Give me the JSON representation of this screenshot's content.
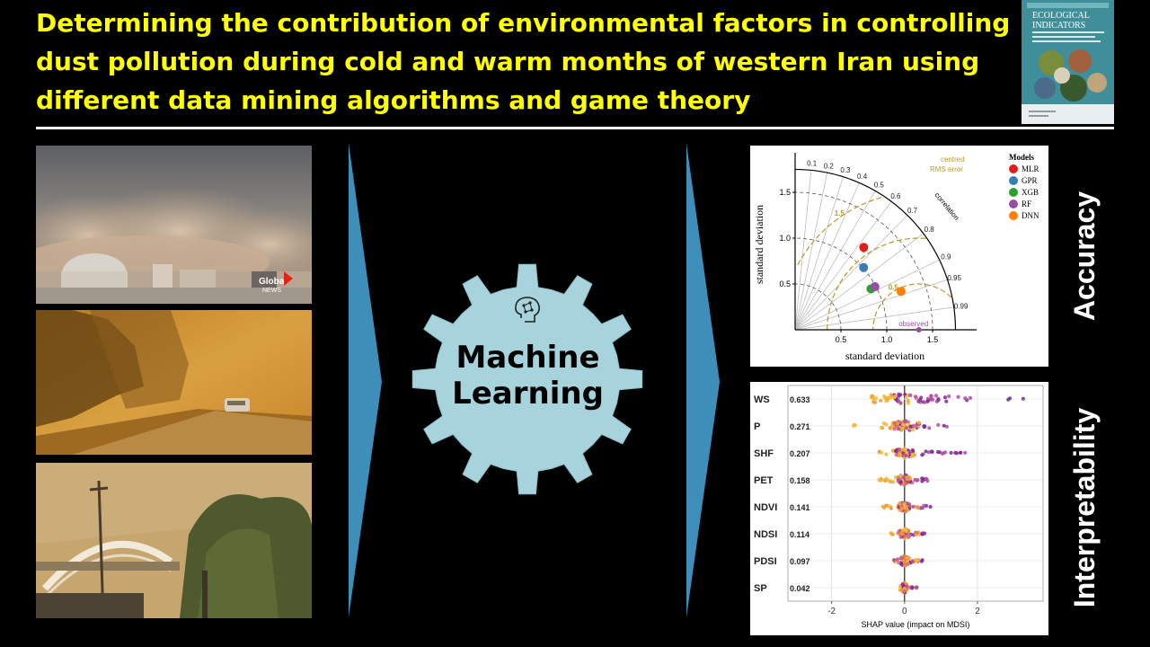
{
  "title": "Determining the contribution of environmental factors in controlling dust pollution during cold and warm months of western Iran using different data mining algorithms and game theory",
  "journal_cover": {
    "journal_name_line1": "ECOLOGICAL",
    "journal_name_line2": "INDICATORS"
  },
  "photos": {
    "dust_storm_watermark_line1": "Global",
    "dust_storm_watermark_line2": "NEWS"
  },
  "center": {
    "label_line1": "Machine",
    "label_line2": "Learning"
  },
  "side_labels": {
    "accuracy": "Accuracy",
    "interpretability": "Interpretability"
  },
  "taylor": {
    "xlabel": "standard deviation",
    "ylabel": "standard deviation",
    "correlation_label": "correlation",
    "rms_label_line1": "centred",
    "rms_label_line2": "RMS error",
    "observed_label": "observed",
    "legend_title": "Models",
    "y_ticks": [
      "0.5",
      "1.0",
      "1.5"
    ],
    "x_ticks": [
      "0.5",
      "1.0",
      "1.5"
    ],
    "corr_ticks": [
      "0.1",
      "0.2",
      "0.3",
      "0.4",
      "0.5",
      "0.6",
      "0.7",
      "0.8",
      "0.9",
      "0.95",
      "0.99"
    ],
    "rms_ticks": [
      "0.5",
      "1",
      "1.5"
    ],
    "colors": {
      "axes": "#000000",
      "rms": "#b89a2c",
      "spokes": "#bdbdbd"
    }
  },
  "chart_data": {
    "type": "scatter",
    "title": "",
    "xlabel": "standard deviation",
    "ylabel": "standard deviation",
    "xlim": [
      0,
      1.5
    ],
    "ylim": [
      0,
      1.5
    ],
    "reference": {
      "name": "observed",
      "std": 1.35
    },
    "series": [
      {
        "name": "MLR",
        "color": "#e31a1c",
        "std": 1.17,
        "correlation": 0.64
      },
      {
        "name": "GPR",
        "color": "#377eb8",
        "std": 1.01,
        "correlation": 0.74
      },
      {
        "name": "XGB",
        "color": "#2ca02c",
        "std": 0.94,
        "correlation": 0.88
      },
      {
        "name": "RF",
        "color": "#984ea3",
        "std": 0.99,
        "correlation": 0.88
      },
      {
        "name": "DNN",
        "color": "#ff7f00",
        "std": 1.23,
        "correlation": 0.94
      }
    ]
  },
  "shap": {
    "type": "beeswarm",
    "xlabel": "SHAP value (impact on MDSI)",
    "x_ticks": [
      "-2",
      "0",
      "2"
    ],
    "xlim": [
      -3.2,
      3.8
    ],
    "features": [
      {
        "name": "WS",
        "value": "0.633",
        "min": -1.2,
        "max": 3.5,
        "spread": 1.9
      },
      {
        "name": "P",
        "value": "0.271",
        "min": -1.4,
        "max": 1.2,
        "spread": 0.8
      },
      {
        "name": "SHF",
        "value": "0.207",
        "min": -0.7,
        "max": 1.7,
        "spread": 0.5
      },
      {
        "name": "PET",
        "value": "0.158",
        "min": -0.7,
        "max": 0.9,
        "spread": 0.35
      },
      {
        "name": "NDVI",
        "value": "0.141",
        "min": -0.6,
        "max": 0.8,
        "spread": 0.3
      },
      {
        "name": "NDSI",
        "value": "0.114",
        "min": -0.4,
        "max": 0.6,
        "spread": 0.25
      },
      {
        "name": "PDSI",
        "value": "0.097",
        "min": -0.3,
        "max": 0.5,
        "spread": 0.2
      },
      {
        "name": "SP",
        "value": "0.042",
        "min": -0.15,
        "max": 0.35,
        "spread": 0.1
      }
    ],
    "colors": [
      "#f7b733",
      "#f29a3c",
      "#d96d6d",
      "#b24d9a",
      "#7a2a9c"
    ]
  }
}
